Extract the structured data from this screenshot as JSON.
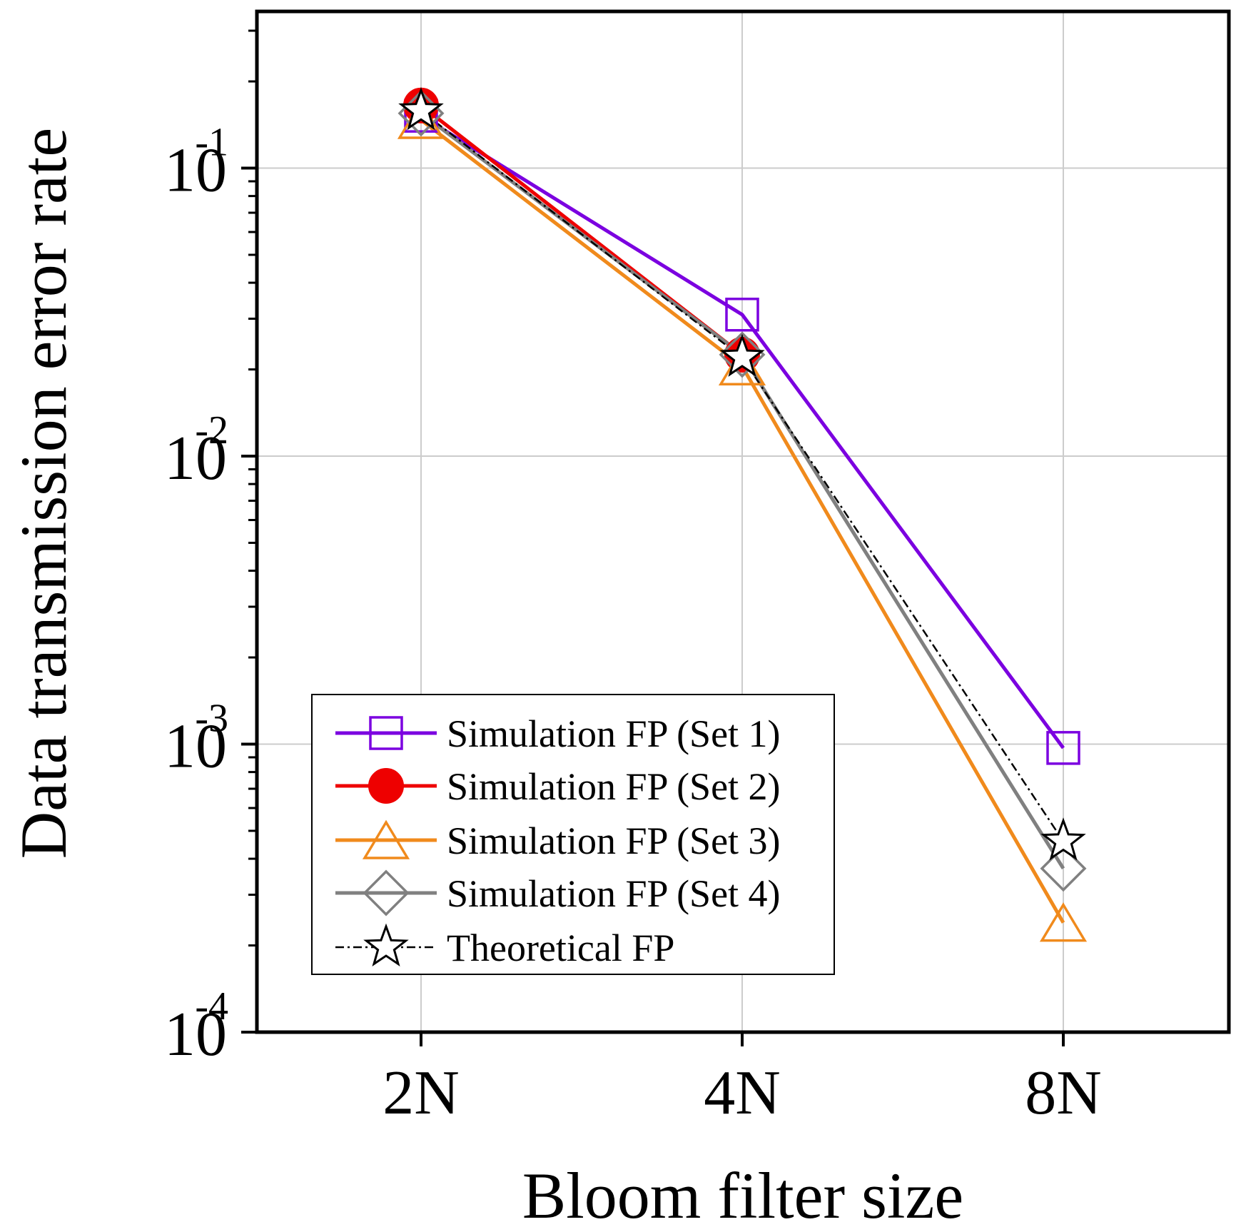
{
  "chart_data": {
    "type": "line",
    "xlabel": "Bloom filter size",
    "ylabel": "Data transmission error rate",
    "yscale": "log",
    "ylim": [
      0.0001,
      0.35
    ],
    "categories": [
      "2N",
      "4N",
      "8N"
    ],
    "yticks": [
      {
        "base": "10",
        "exp": "-1",
        "value": 0.1
      },
      {
        "base": "10",
        "exp": "-2",
        "value": 0.01
      },
      {
        "base": "10",
        "exp": "-3",
        "value": 0.001
      },
      {
        "base": "10",
        "exp": "-4",
        "value": 0.0001
      }
    ],
    "grid": true,
    "legend_position": "bottom-center",
    "series": [
      {
        "name": "Simulation FP (Set 1)",
        "color": "#7B00E0",
        "marker": "square",
        "dash": "solid",
        "values": [
          0.152,
          0.031,
          0.00097
        ]
      },
      {
        "name": "Simulation FP (Set 2)",
        "color": "#EE0000",
        "marker": "circle",
        "dash": "solid",
        "values": [
          0.165,
          0.0225,
          null
        ]
      },
      {
        "name": "Simulation FP (Set 3)",
        "color": "#F08A1C",
        "marker": "triangle",
        "dash": "solid",
        "values": [
          0.147,
          0.0205,
          0.00024
        ]
      },
      {
        "name": "Simulation FP (Set 4)",
        "color": "#808080",
        "marker": "diamond",
        "dash": "solid",
        "values": [
          0.155,
          0.0225,
          0.00037
        ]
      },
      {
        "name": "Theoretical FP",
        "color": "#000000",
        "marker": "star",
        "dash": "dashdot",
        "values": [
          0.158,
          0.022,
          0.00046
        ]
      }
    ]
  }
}
